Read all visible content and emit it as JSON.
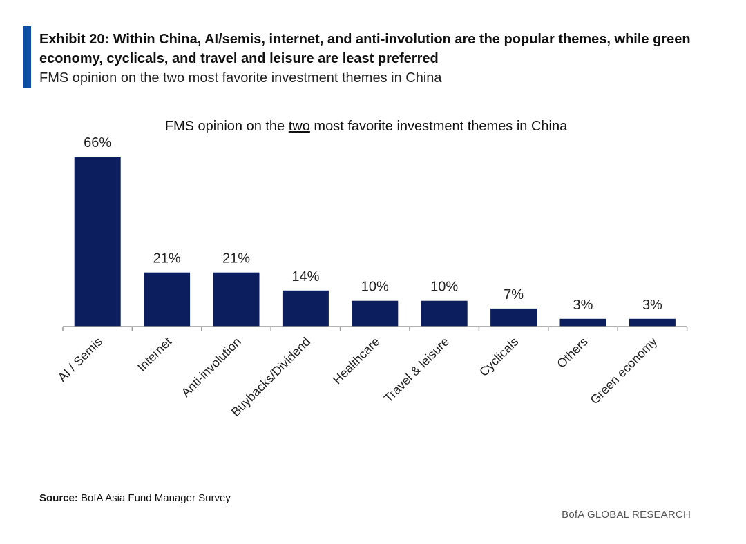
{
  "header": {
    "title": "Exhibit 20: Within China, AI/semis, internet, and anti-involution are the popular themes, while green economy, cyclicals, and travel and leisure are least preferred",
    "subtitle": "FMS opinion on the two most favorite investment themes in China"
  },
  "footer": {
    "source_label": "Source:",
    "source_text": "BofA Asia Fund Manager Survey",
    "brand": "BofA GLOBAL RESEARCH"
  },
  "colors": {
    "accent": "#0d4ea6",
    "bar": "#0c1e5e",
    "axis": "#9a9a9a"
  },
  "chart_data": {
    "type": "bar",
    "title_parts": [
      "FMS opinion on the ",
      "two",
      " most favorite investment themes in China"
    ],
    "categories": [
      "AI / Semis",
      "Internet",
      "Anti-involution",
      "Buybacks/Dividend",
      "Healthcare",
      "Travel & leisure",
      "Cyclicals",
      "Others",
      "Green economy"
    ],
    "values": [
      66,
      21,
      21,
      14,
      10,
      10,
      7,
      3,
      3
    ],
    "data_labels": [
      "66%",
      "21%",
      "21%",
      "14%",
      "10%",
      "10%",
      "7%",
      "3%",
      "3%"
    ],
    "unit": "%",
    "ylim": [
      0,
      66
    ],
    "xlabel": "",
    "ylabel": "",
    "grid": false,
    "legend": "none"
  }
}
